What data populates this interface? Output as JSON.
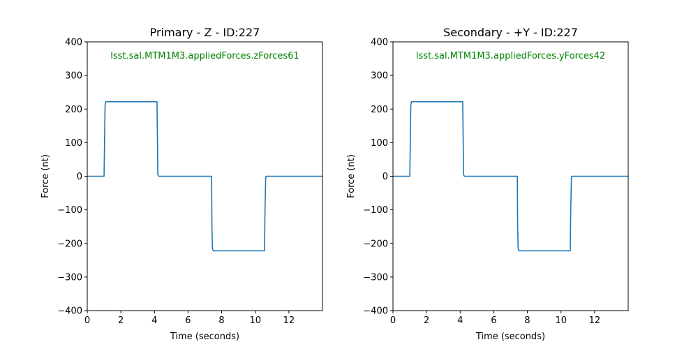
{
  "chart_data": [
    {
      "type": "line",
      "title": "Primary - Z - ID:227",
      "xlabel": "Time (seconds)",
      "ylabel": "Force (nt)",
      "annotation": "lsst.sal.MTM1M3.appliedForces.zForces61",
      "annotation_color": "#008000",
      "line_color": "#1f77b4",
      "xlim": [
        0,
        14
      ],
      "ylim": [
        -400,
        400
      ],
      "xticks": [
        0,
        2,
        4,
        6,
        8,
        10,
        12
      ],
      "yticks": [
        -400,
        -300,
        -200,
        -100,
        0,
        100,
        200,
        300,
        400
      ],
      "grid": false,
      "series": [
        {
          "x": [
            0,
            1.0,
            1.03,
            1.06,
            1.1,
            4.15,
            4.18,
            4.2,
            4.25,
            7.4,
            7.42,
            7.45,
            7.5,
            10.55,
            10.58,
            10.62,
            10.65,
            14
          ],
          "y": [
            0,
            0,
            100,
            210,
            222,
            222,
            100,
            5,
            0,
            0,
            -150,
            -215,
            -222,
            -222,
            -100,
            -5,
            0,
            0
          ]
        }
      ]
    },
    {
      "type": "line",
      "title": "Secondary - +Y - ID:227",
      "xlabel": "Time (seconds)",
      "ylabel": "Force (nt)",
      "annotation": "lsst.sal.MTM1M3.appliedForces.yForces42",
      "annotation_color": "#008000",
      "line_color": "#1f77b4",
      "xlim": [
        0,
        14
      ],
      "ylim": [
        -400,
        400
      ],
      "xticks": [
        0,
        2,
        4,
        6,
        8,
        10,
        12
      ],
      "yticks": [
        -400,
        -300,
        -200,
        -100,
        0,
        100,
        200,
        300,
        400
      ],
      "grid": false,
      "series": [
        {
          "x": [
            0,
            1.0,
            1.03,
            1.06,
            1.1,
            4.15,
            4.18,
            4.2,
            4.25,
            7.4,
            7.42,
            7.45,
            7.5,
            10.55,
            10.58,
            10.62,
            10.65,
            14
          ],
          "y": [
            0,
            0,
            100,
            210,
            222,
            222,
            100,
            5,
            0,
            0,
            -150,
            -215,
            -222,
            -222,
            -100,
            -5,
            0,
            0
          ]
        }
      ]
    }
  ]
}
